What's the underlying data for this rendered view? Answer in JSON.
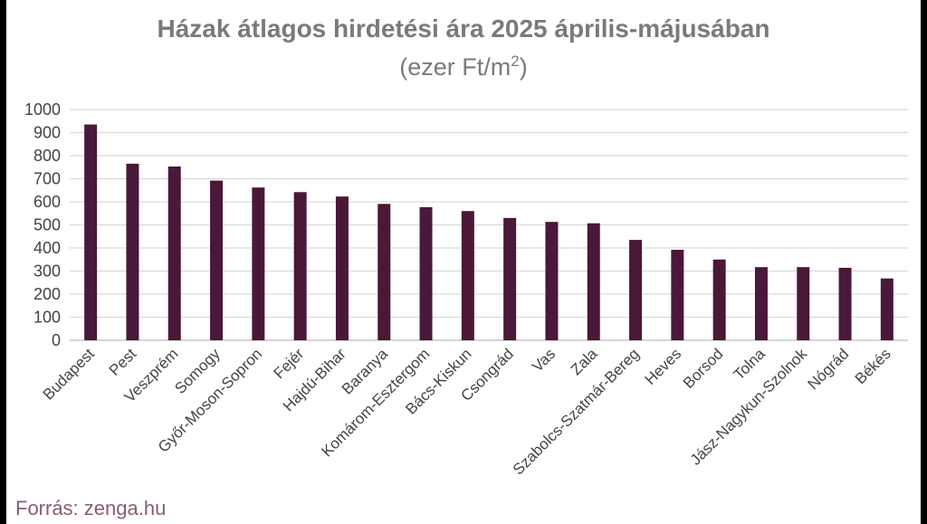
{
  "chart_data": {
    "type": "bar",
    "title": "Házak átlagos hirdetési ára 2025 április-májusában",
    "subtitle_prefix": "(ezer Ft/m",
    "subtitle_sup": "2",
    "subtitle_suffix": ")",
    "categories": [
      "Budapest",
      "Pest",
      "Veszprém",
      "Somogy",
      "Győr-Moson-Sopron",
      "Fejér",
      "Hajdú-Bihar",
      "Baranya",
      "Komárom-Esztergom",
      "Bács-Kiskun",
      "Csongrád",
      "Vas",
      "Zala",
      "Szabolcs-Szatmár-Bereg",
      "Heves",
      "Borsod",
      "Tolna",
      "Jász-Nagykun-Szolnok",
      "Nógrád",
      "Békés"
    ],
    "values": [
      935,
      765,
      753,
      692,
      662,
      642,
      623,
      591,
      577,
      560,
      530,
      513,
      507,
      435,
      392,
      350,
      317,
      317,
      314,
      268
    ],
    "ylim": [
      0,
      1000
    ],
    "yticks": [
      0,
      100,
      200,
      300,
      400,
      500,
      600,
      700,
      800,
      900,
      1000
    ],
    "grid": true,
    "bar_color": "#4a1838",
    "source": "Forrás: zenga.hu"
  }
}
